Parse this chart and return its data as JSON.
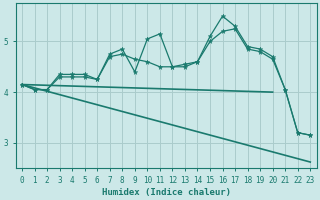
{
  "title": "",
  "xlabel": "Humidex (Indice chaleur)",
  "background_color": "#cce8e8",
  "line_color": "#1a7a6e",
  "grid_color": "#aacccc",
  "xlim": [
    -0.5,
    23.5
  ],
  "ylim": [
    2.5,
    5.75
  ],
  "yticks": [
    3,
    4,
    5
  ],
  "xticks": [
    0,
    1,
    2,
    3,
    4,
    5,
    6,
    7,
    8,
    9,
    10,
    11,
    12,
    13,
    14,
    15,
    16,
    17,
    18,
    19,
    20,
    21,
    22,
    23
  ],
  "line1_x": [
    0,
    1,
    2,
    3,
    4,
    5,
    6,
    7,
    8,
    9,
    10,
    11,
    12,
    13,
    14,
    15,
    16,
    17,
    18,
    19,
    20,
    21,
    22,
    23
  ],
  "line1_y": [
    4.15,
    4.05,
    4.05,
    4.3,
    4.3,
    4.3,
    4.25,
    4.7,
    4.75,
    4.65,
    4.6,
    4.5,
    4.5,
    4.55,
    4.6,
    5.0,
    5.2,
    5.25,
    4.85,
    4.8,
    4.65,
    4.05,
    3.2,
    3.15
  ],
  "line2_x": [
    0,
    1,
    2,
    3,
    4,
    5,
    6,
    7,
    8,
    9,
    10,
    11,
    12,
    13,
    14,
    15,
    16,
    17,
    18,
    19,
    20,
    21,
    22,
    23
  ],
  "line2_y": [
    4.15,
    4.05,
    4.05,
    4.35,
    4.35,
    4.35,
    4.25,
    4.75,
    4.85,
    4.4,
    5.05,
    5.15,
    4.5,
    4.5,
    4.6,
    5.1,
    5.5,
    5.3,
    4.9,
    4.85,
    4.7,
    4.05,
    3.2,
    3.15
  ],
  "line3_x": [
    0,
    23
  ],
  "line3_y": [
    4.15,
    2.62
  ],
  "line4_x": [
    0,
    20
  ],
  "line4_y": [
    4.15,
    4.0
  ]
}
